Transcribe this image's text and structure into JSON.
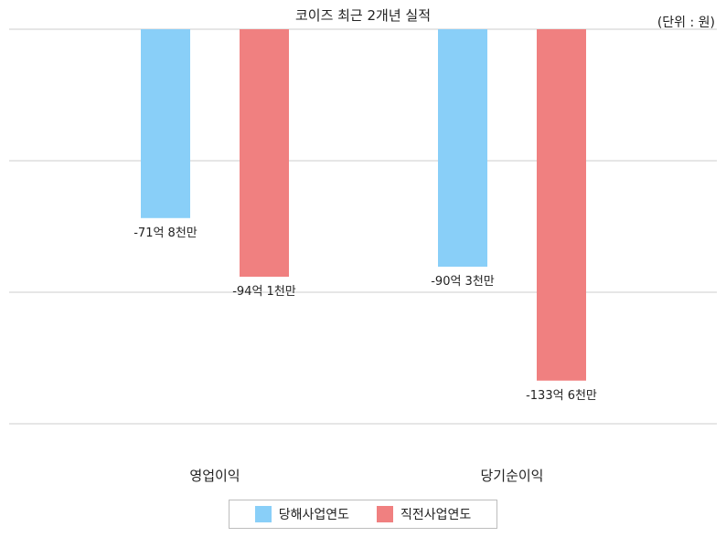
{
  "colors": {
    "current": "#89cff8",
    "previous": "#f08080",
    "grid": "#cccccc"
  },
  "chart_data": {
    "type": "bar",
    "title": "코이즈 최근 2개년 실적",
    "unit_label": "(단위 : 원)",
    "categories": [
      "영업이익",
      "당기순이익"
    ],
    "ylim": [
      -150,
      0
    ],
    "grid": true,
    "legend_position": "bottom",
    "series": [
      {
        "name": "당해사업연도",
        "values": [
          -71.8,
          -90.3
        ],
        "labels": [
          "-71억 8천만",
          "-90억 3천만"
        ]
      },
      {
        "name": "직전사업연도",
        "values": [
          -94.1,
          -133.6
        ],
        "labels": [
          "-94억 1천만",
          "-133억 6천만"
        ]
      }
    ]
  }
}
